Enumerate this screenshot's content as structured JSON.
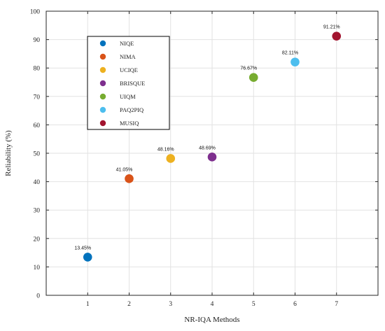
{
  "chart_data": {
    "type": "scatter",
    "title": "",
    "xlabel": "NR-IQA Methods",
    "ylabel": "Reliability (%)",
    "xlim": [
      0,
      8
    ],
    "ylim": [
      0,
      100
    ],
    "x_ticks": [
      1,
      2,
      3,
      4,
      5,
      6,
      7
    ],
    "y_ticks": [
      0,
      10,
      20,
      30,
      40,
      50,
      60,
      70,
      80,
      90,
      100
    ],
    "grid": true,
    "legend_position": "top-left",
    "series": [
      {
        "name": "NIQE",
        "color": "#0072BD",
        "x": 1,
        "y": 13.45,
        "label": "13.45%"
      },
      {
        "name": "NIMA",
        "color": "#D95319",
        "x": 2,
        "y": 41.05,
        "label": "41.05%"
      },
      {
        "name": "UCIQE",
        "color": "#EDB120",
        "x": 3,
        "y": 48.16,
        "label": "48.16%"
      },
      {
        "name": "BRISQUE",
        "color": "#7E2F8E",
        "x": 4,
        "y": 48.69,
        "label": "48.69%"
      },
      {
        "name": "UIQM",
        "color": "#77AC30",
        "x": 5,
        "y": 76.67,
        "label": "76.67%"
      },
      {
        "name": "PAQ2PIQ",
        "color": "#4DBEEE",
        "x": 6,
        "y": 82.11,
        "label": "82.11%"
      },
      {
        "name": "MUSIQ",
        "color": "#A2142F",
        "x": 7,
        "y": 91.21,
        "label": "91.21%"
      }
    ]
  }
}
